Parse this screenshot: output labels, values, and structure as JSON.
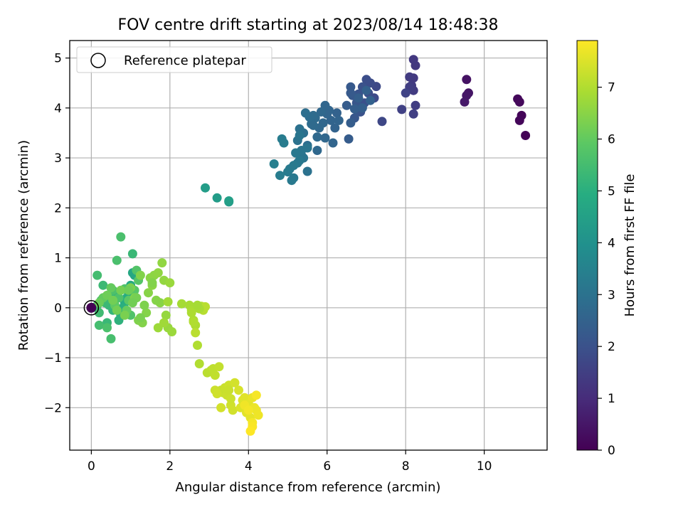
{
  "chart_data": {
    "type": "scatter",
    "title": "FOV centre drift starting at 2023/08/14 18:48:38",
    "xlabel": "Angular distance from reference (arcmin)",
    "ylabel": "Rotation from reference (arcmin)",
    "xlim": [
      -0.55,
      11.6
    ],
    "ylim": [
      -2.85,
      5.35
    ],
    "xticks": [
      0,
      2,
      4,
      6,
      8,
      10
    ],
    "yticks": [
      -2,
      -1,
      0,
      1,
      2,
      3,
      4,
      5
    ],
    "grid": true,
    "legend": {
      "label": "Reference platepar",
      "placement": "top-left",
      "marker": "open-circle"
    },
    "reference_point": {
      "x": 0,
      "y": 0
    },
    "colorbar": {
      "label": "Hours from first FF file",
      "colormap": "viridis",
      "min": 0,
      "max": 7.9,
      "ticks": [
        0,
        1,
        2,
        3,
        4,
        5,
        6,
        7
      ]
    },
    "series": [
      {
        "x": [
          11.05,
          10.95,
          10.9,
          10.85,
          10.9,
          9.55,
          9.6,
          9.55,
          9.5,
          8.25,
          8.2,
          8.2,
          8.1,
          8.15,
          8.2,
          8.25,
          8.1,
          8.2,
          7.9,
          8.0
        ],
        "y": [
          3.45,
          3.85,
          3.75,
          4.18,
          4.12,
          4.57,
          4.3,
          4.25,
          4.12,
          4.85,
          4.97,
          4.6,
          4.62,
          4.45,
          4.35,
          4.05,
          4.42,
          3.88,
          3.97,
          4.3
        ],
        "hours": [
          0.05,
          0.1,
          0.12,
          0.15,
          0.18,
          0.4,
          0.45,
          0.5,
          0.55,
          1.3,
          1.32,
          1.35,
          1.38,
          1.4,
          1.42,
          1.45,
          1.48,
          1.5,
          1.55,
          1.6
        ]
      },
      {
        "x": [
          7.4,
          7.25,
          7.2,
          7.1,
          7.05,
          7.0,
          6.95,
          6.9,
          6.85,
          6.8,
          6.8,
          6.75,
          6.7,
          6.65,
          6.6,
          6.6,
          6.55,
          6.5,
          6.6,
          6.7,
          6.8,
          6.9,
          7.0,
          7.1
        ],
        "y": [
          3.73,
          4.43,
          4.2,
          4.5,
          4.3,
          4.57,
          4.1,
          4.42,
          3.92,
          4.28,
          3.95,
          4.1,
          3.8,
          4.25,
          4.42,
          4.3,
          3.38,
          4.05,
          3.7,
          3.98,
          4.2,
          4.0,
          4.35,
          4.15
        ],
        "hours": [
          1.7,
          1.75,
          1.8,
          1.85,
          1.88,
          1.9,
          1.95,
          2.0,
          2.02,
          2.05,
          2.1,
          2.12,
          2.15,
          2.2,
          2.22,
          2.25,
          2.3,
          2.32,
          2.35,
          2.38,
          2.4,
          2.42,
          2.45,
          2.48
        ]
      },
      {
        "x": [
          6.25,
          6.2,
          6.1,
          6.05,
          6.0,
          5.95,
          5.9,
          5.85,
          5.8,
          5.75,
          5.7,
          5.65,
          5.6,
          5.55,
          5.5,
          5.45,
          5.4,
          5.35,
          5.3,
          5.25,
          6.3,
          6.15,
          5.95,
          5.75,
          5.65
        ],
        "y": [
          3.9,
          3.6,
          3.75,
          3.95,
          3.88,
          4.05,
          3.7,
          3.92,
          3.6,
          3.42,
          3.8,
          3.85,
          3.68,
          3.82,
          3.25,
          3.9,
          3.5,
          3.05,
          3.58,
          3.35,
          3.75,
          3.3,
          3.4,
          3.15,
          3.65
        ],
        "hours": [
          2.5,
          2.52,
          2.55,
          2.58,
          2.6,
          2.62,
          2.65,
          2.68,
          2.7,
          2.72,
          2.75,
          2.78,
          2.8,
          2.82,
          2.85,
          2.88,
          2.9,
          2.92,
          2.95,
          2.98,
          2.55,
          2.6,
          2.65,
          2.7,
          2.75
        ]
      },
      {
        "x": [
          5.5,
          5.4,
          5.35,
          5.3,
          5.25,
          5.2,
          5.15,
          5.1,
          5.05,
          5.0,
          4.9,
          4.85,
          4.8,
          4.65,
          5.5,
          5.3,
          5.15
        ],
        "y": [
          2.73,
          3.0,
          3.15,
          3.45,
          2.9,
          3.1,
          2.6,
          2.55,
          2.78,
          2.72,
          3.3,
          3.38,
          2.65,
          2.88,
          3.2,
          2.95,
          2.85
        ],
        "hours": [
          3.0,
          3.05,
          3.08,
          3.1,
          3.15,
          3.18,
          3.2,
          3.22,
          3.25,
          3.28,
          3.3,
          3.32,
          3.35,
          3.4,
          3.1,
          3.2,
          3.25
        ]
      },
      {
        "x": [
          3.5,
          3.2,
          2.9,
          3.5
        ],
        "y": [
          2.12,
          2.2,
          2.4,
          2.14
        ],
        "hours": [
          4.3,
          4.35,
          4.4,
          4.45
        ]
      },
      {
        "x": [
          1.1,
          1.05,
          1.0,
          0.95,
          0.9,
          0.85,
          0.8,
          0.75,
          0.7,
          0.65,
          0.6,
          0.55,
          0.5,
          0.45,
          0.4,
          0.35,
          0.3,
          0.25,
          0.2,
          0.15,
          0.15,
          0.2,
          0.5,
          0.65,
          0.4,
          0.55,
          0.7,
          0.85,
          1.0,
          1.15,
          1.2,
          1.1,
          0.95,
          0.6,
          0.3,
          0.5,
          0.9,
          1.05,
          0.75
        ],
        "y": [
          0.65,
          0.7,
          0.45,
          0.3,
          0.2,
          0.1,
          0.0,
          -0.15,
          -0.25,
          0.3,
          0.15,
          -0.05,
          0.25,
          0.05,
          -0.3,
          0.1,
          0.45,
          0.15,
          -0.1,
          0.05,
          0.65,
          -0.35,
          -0.62,
          0.95,
          -0.4,
          0.35,
          0.2,
          0.38,
          -0.15,
          0.75,
          0.55,
          0.35,
          0.15,
          0.05,
          0.2,
          0.4,
          -0.05,
          1.08,
          1.42
        ],
        "hours": [
          4.7,
          4.75,
          4.8,
          4.85,
          4.9,
          4.95,
          5.0,
          5.05,
          5.1,
          5.12,
          5.15,
          5.2,
          5.22,
          5.25,
          5.3,
          5.32,
          5.35,
          5.4,
          5.42,
          5.45,
          5.5,
          5.52,
          5.55,
          5.6,
          5.62,
          5.65,
          5.68,
          5.7,
          5.72,
          5.75,
          5.8,
          5.85,
          5.9,
          5.95,
          6.0,
          6.02,
          6.05,
          5.3,
          5.6
        ]
      },
      {
        "x": [
          0.2,
          0.4,
          0.55,
          0.65,
          0.75,
          0.85,
          1.0,
          1.1,
          1.2,
          1.25,
          1.3,
          1.4,
          1.45,
          1.5,
          1.55,
          1.6,
          1.7,
          1.8,
          1.85,
          1.9,
          1.95,
          2.0,
          2.05,
          1.75,
          1.65,
          1.55,
          1.35,
          1.25,
          1.15,
          1.05,
          0.95
        ],
        "y": [
          0.1,
          0.25,
          0.15,
          -0.05,
          0.35,
          -0.15,
          0.4,
          0.2,
          -0.25,
          0.65,
          -0.3,
          -0.1,
          0.3,
          0.6,
          0.45,
          0.65,
          0.7,
          0.9,
          0.55,
          -0.15,
          -0.4,
          0.5,
          -0.48,
          0.1,
          0.15,
          0.5,
          0.05,
          -0.2,
          0.2,
          0.1,
          0.35
        ],
        "hours": [
          6.1,
          6.15,
          6.2,
          6.22,
          6.25,
          6.3,
          6.32,
          6.35,
          6.38,
          6.4,
          6.42,
          6.45,
          6.48,
          6.5,
          6.52,
          6.55,
          6.58,
          6.6,
          6.62,
          6.65,
          6.68,
          6.7,
          6.72,
          6.5,
          6.45,
          6.4,
          6.35,
          6.3,
          6.25,
          6.2,
          6.15
        ]
      },
      {
        "x": [
          1.7,
          1.85,
          1.95,
          2.3,
          2.5,
          2.55,
          2.6,
          2.65,
          2.7,
          2.75,
          2.8,
          2.85,
          2.9,
          2.6,
          2.65,
          2.55,
          2.75,
          2.7
        ],
        "y": [
          -0.4,
          -0.3,
          0.12,
          0.08,
          0.05,
          -0.05,
          -0.25,
          -0.35,
          -0.75,
          -1.12,
          0.03,
          -0.05,
          0.02,
          -0.28,
          -0.5,
          -0.1,
          -0.02,
          0.05
        ],
        "hours": [
          6.75,
          6.78,
          6.8,
          6.85,
          6.88,
          6.9,
          6.92,
          6.95,
          6.98,
          7.0,
          7.02,
          7.05,
          7.08,
          7.0,
          7.1,
          6.95,
          6.9,
          6.85
        ]
      },
      {
        "x": [
          2.95,
          3.05,
          3.1,
          3.15,
          3.25,
          3.3,
          3.35,
          3.4,
          3.45,
          3.5,
          3.55,
          3.6,
          3.65,
          3.15,
          3.2,
          3.3,
          3.5,
          3.55
        ],
        "y": [
          -1.3,
          -1.25,
          -1.22,
          -1.35,
          -1.18,
          -1.65,
          -1.7,
          -1.6,
          -1.75,
          -1.55,
          -1.95,
          -2.05,
          -1.5,
          -1.65,
          -1.72,
          -2.0,
          -1.65,
          -1.82
        ],
        "hours": [
          7.1,
          7.12,
          7.15,
          7.18,
          7.2,
          7.22,
          7.25,
          7.28,
          7.3,
          7.32,
          7.35,
          7.38,
          7.4,
          7.3,
          7.35,
          7.4,
          7.28,
          7.32
        ]
      },
      {
        "x": [
          3.75,
          3.8,
          3.85,
          3.9,
          3.95,
          4.0,
          4.05,
          4.1,
          4.15,
          4.2,
          4.25,
          3.9,
          4.0,
          4.1,
          4.2,
          4.1,
          4.05
        ],
        "y": [
          -1.65,
          -2.0,
          -1.85,
          -1.8,
          -2.1,
          -1.92,
          -2.2,
          -1.8,
          -2.0,
          -2.05,
          -2.15,
          -1.95,
          -2.05,
          -2.3,
          -1.75,
          -2.38,
          -2.47
        ],
        "hours": [
          7.45,
          7.5,
          7.52,
          7.55,
          7.58,
          7.6,
          7.62,
          7.65,
          7.68,
          7.7,
          7.72,
          7.75,
          7.78,
          7.8,
          7.82,
          7.85,
          7.9
        ]
      }
    ]
  }
}
